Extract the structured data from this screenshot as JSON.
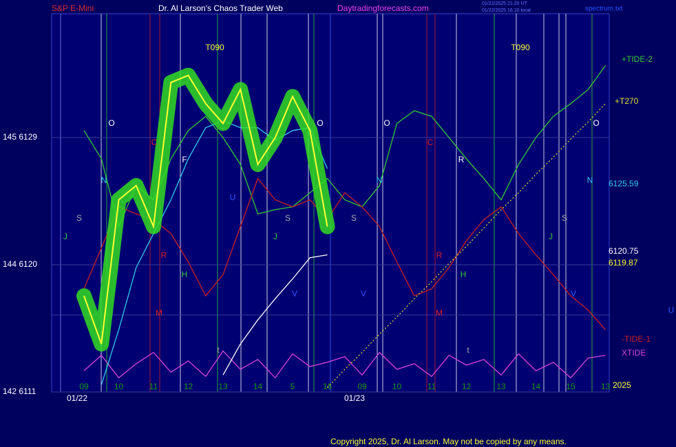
{
  "chart_data": {
    "type": "line",
    "title": "Dr. Al Larson's Chaos Trader Web",
    "instrument": "S&P E-Mini",
    "site": "Daytradingforecasts.com",
    "timestamps": [
      "01/22/2025 21:20 UT",
      "01/22/2025 16:20 local"
    ],
    "file": "spectrum.txt",
    "copyright": "Copyright 2025, Dr. Al Larson. May not be copied by any means.",
    "categories": [
      "09",
      null,
      "10",
      null,
      "11",
      null,
      "12",
      null,
      "13",
      null,
      "14",
      null,
      "5",
      null,
      "16",
      null,
      "09",
      null,
      "10",
      null,
      "11",
      null,
      "12",
      null,
      "13",
      null,
      "14",
      null,
      "15",
      null,
      "13"
    ],
    "dates": [
      "01/22",
      "01/23"
    ],
    "ylim": [
      6111,
      6137.76
    ],
    "yticks": [
      {
        "value": 6129,
        "label": "145  6129"
      },
      {
        "value": 6120,
        "label": "144  6120"
      },
      {
        "value": 6111,
        "label": "142  6111"
      }
    ],
    "grid": true,
    "series": [
      {
        "name": "+TIDE-2",
        "color": "#33cc33",
        "values": [
          6129.5,
          6127.5,
          6122.7,
          6125.6,
          6124.6,
          6127.5,
          6129.5,
          6130.5,
          6129.0,
          6127.1,
          6123.6,
          6123.9,
          6124.1,
          6125.1,
          6126.1,
          6124.6,
          6124.1,
          6125.6,
          6130.0,
          6130.9,
          6130.5,
          6129.0,
          6127.5,
          6126.1,
          6124.6,
          6127.1,
          6129.0,
          6130.5,
          6131.4,
          6132.4,
          6134.1
        ]
      },
      {
        "name": "-TIDE-1",
        "color": "#cc2222",
        "values": [
          6118.3,
          6121.2,
          6124.1,
          6123.6,
          6123.2,
          6122.2,
          6120.2,
          6117.8,
          6119.3,
          6122.7,
          6126.1,
          6124.6,
          6124.1,
          6124.6,
          6123.2,
          6125.1,
          6124.1,
          6122.7,
          6120.2,
          6117.8,
          6118.3,
          6119.8,
          6121.7,
          6123.2,
          6124.1,
          6122.2,
          6120.7,
          6119.3,
          6117.8,
          6116.8,
          6115.4
        ]
      },
      {
        "name": "XTIDE",
        "color": "#dd44dd",
        "values": [
          6112.5,
          6113.6,
          6112.0,
          6113.0,
          6113.8,
          6112.4,
          6113.2,
          6112.1,
          6113.9,
          6112.6,
          6113.3,
          6112.0,
          6113.7,
          6112.8,
          6113.1,
          6113.5,
          6112.2,
          6113.8,
          6112.6,
          6113.0,
          6112.1,
          6113.6,
          6112.9,
          6113.3,
          6112.2,
          6113.7,
          6112.5,
          6113.1,
          6112.0,
          6113.4,
          6113.6
        ]
      },
      {
        "name": "+T270",
        "color": "#dddd33",
        "dashed": true,
        "values": [
          null,
          null,
          null,
          null,
          null,
          null,
          null,
          null,
          null,
          null,
          null,
          null,
          null,
          null,
          6111.3,
          6112.6,
          6113.8,
          6115.1,
          6116.3,
          6117.6,
          6118.8,
          6120.1,
          6121.3,
          6122.6,
          6123.9,
          6125.1,
          6126.4,
          6127.6,
          6128.9,
          6130.1,
          6131.4
        ]
      },
      {
        "color": "#33ccee",
        "values": [
          null,
          6111.5,
          6115.4,
          6119.8,
          6122.2,
          6124.6,
          6127.5,
          6129.7,
          6130.2,
          6129.7,
          6129.7,
          6128.8,
          6129.5,
          6129.7,
          6126.8,
          null,
          null,
          null,
          null,
          null,
          null,
          null,
          null,
          null,
          null,
          null,
          null,
          null,
          null,
          null,
          null
        ]
      },
      {
        "color": "#ffffff",
        "values": [
          null,
          null,
          null,
          null,
          null,
          null,
          null,
          null,
          6112.2,
          6114.4,
          6116.1,
          6117.6,
          6119.0,
          6120.5,
          6120.7,
          null,
          null,
          null,
          null,
          null,
          null,
          null,
          null,
          null,
          null,
          null,
          null,
          null,
          null,
          null,
          null
        ]
      },
      {
        "color": "#ffff33",
        "band_color": "#33dd22",
        "values": [
          6117.8,
          6114.4,
          6124.6,
          6125.6,
          6122.7,
          6132.9,
          6133.4,
          6131.4,
          6130.0,
          6132.4,
          6127.1,
          6129.0,
          6131.9,
          6129.5,
          6122.7,
          null,
          null,
          null,
          null,
          null,
          null,
          null,
          null,
          null,
          null,
          null,
          null,
          null,
          null,
          null,
          null
        ]
      }
    ],
    "price_labels": [
      "6125.59",
      "6120.75",
      "6119.87"
    ],
    "annotations": [
      "T090",
      "T090",
      "O",
      "O",
      "O",
      "O",
      "N",
      "N",
      "N",
      "S",
      "S",
      "S",
      "S",
      "J",
      "J",
      "J",
      "C",
      "C",
      "F",
      "R",
      "R",
      "R",
      "H",
      "H",
      "M",
      "M",
      "U",
      "U",
      "V",
      "V",
      "V",
      "t",
      "t"
    ],
    "year": "2025"
  }
}
